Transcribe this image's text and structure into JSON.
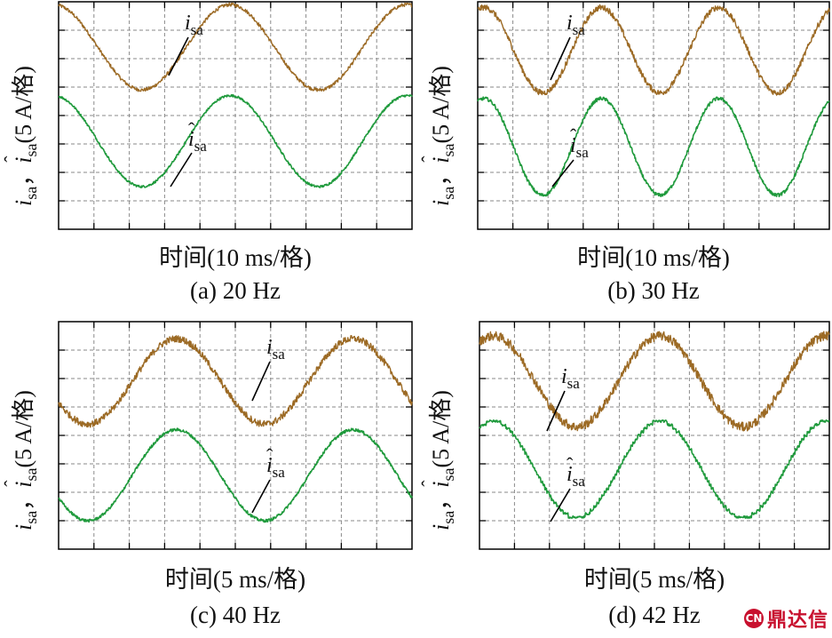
{
  "y_label_parts": {
    "i": "i",
    "sub": "sa",
    "sep": "，",
    "unit": "(5 A/格)"
  },
  "trace_labels": {
    "measured": "i",
    "estimated": "i",
    "sub": "sa"
  },
  "colors": {
    "measured": "#9c6a24",
    "measured_dark": "#3a2a10",
    "estimated": "#1f9a3c",
    "grid": "#8a8a8a",
    "frame": "#000000",
    "logo": "#c8102e"
  },
  "panels": [
    {
      "caption": "(a) 20 Hz",
      "xlabel": "时间(10 ms/格)"
    },
    {
      "caption": "(b) 30 Hz",
      "xlabel": "时间(10 ms/格)"
    },
    {
      "caption": "(c) 40 Hz",
      "xlabel": "时间(5 ms/格)"
    },
    {
      "caption": "(d) 42 Hz",
      "xlabel": "时间(5 ms/格)"
    }
  ],
  "logo": {
    "text": "鼎达信",
    "mark": "CN"
  },
  "chart_data": [
    {
      "type": "line",
      "title": "(a) 20 Hz",
      "xlabel": "时间(10 ms/格)",
      "ylabel": "i_sa, î_sa (5 A/格)",
      "x_divisions": 10,
      "y_divisions": 8,
      "ms_per_div": 10,
      "amps_per_div": 5,
      "frequency_hz": 20,
      "grid": true,
      "series": [
        {
          "name": "i_sa",
          "amplitude_div": 1.5,
          "offset_div": 2.4,
          "phase_deg": 100,
          "noise_div": 0.06
        },
        {
          "name": "î_sa",
          "amplitude_div": 1.6,
          "offset_div": -0.9,
          "phase_deg": 100,
          "noise_div": 0.04
        }
      ]
    },
    {
      "type": "line",
      "title": "(b) 30 Hz",
      "xlabel": "时间(10 ms/格)",
      "ylabel": "i_sa, î_sa (5 A/格)",
      "x_divisions": 10,
      "y_divisions": 8,
      "ms_per_div": 10,
      "amps_per_div": 5,
      "frequency_hz": 30,
      "grid": true,
      "series": [
        {
          "name": "i_sa",
          "amplitude_div": 1.5,
          "offset_div": 2.3,
          "phase_deg": 70,
          "noise_div": 0.1
        },
        {
          "name": "î_sa",
          "amplitude_div": 1.7,
          "offset_div": -1.1,
          "phase_deg": 70,
          "noise_div": 0.06
        }
      ]
    },
    {
      "type": "line",
      "title": "(c) 40 Hz",
      "xlabel": "时间(5 ms/格)",
      "ylabel": "i_sa, î_sa (5 A/格)",
      "x_divisions": 10,
      "y_divisions": 8,
      "ms_per_div": 5,
      "amps_per_div": 5,
      "frequency_hz": 40,
      "grid": true,
      "series": [
        {
          "name": "i_sa",
          "amplitude_div": 1.5,
          "offset_div": 1.9,
          "phase_deg": 210,
          "noise_div": 0.12
        },
        {
          "name": "î_sa",
          "amplitude_div": 1.6,
          "offset_div": -1.4,
          "phase_deg": 210,
          "noise_div": 0.05
        }
      ]
    },
    {
      "type": "line",
      "title": "(d) 42 Hz",
      "xlabel": "时间(5 ms/格)",
      "ylabel": "i_sa, î_sa (5 A/格)",
      "x_divisions": 10,
      "y_divisions": 8,
      "ms_per_div": 5,
      "amps_per_div": 5,
      "frequency_hz": 42,
      "grid": true,
      "series": [
        {
          "name": "i_sa",
          "amplitude_div": 1.6,
          "offset_div": 1.9,
          "phase_deg": 60,
          "noise_div": 0.16
        },
        {
          "name": "î_sa",
          "amplitude_div": 1.7,
          "offset_div": -1.2,
          "phase_deg": 60,
          "noise_div": 0.04,
          "stepped": true
        }
      ]
    }
  ]
}
